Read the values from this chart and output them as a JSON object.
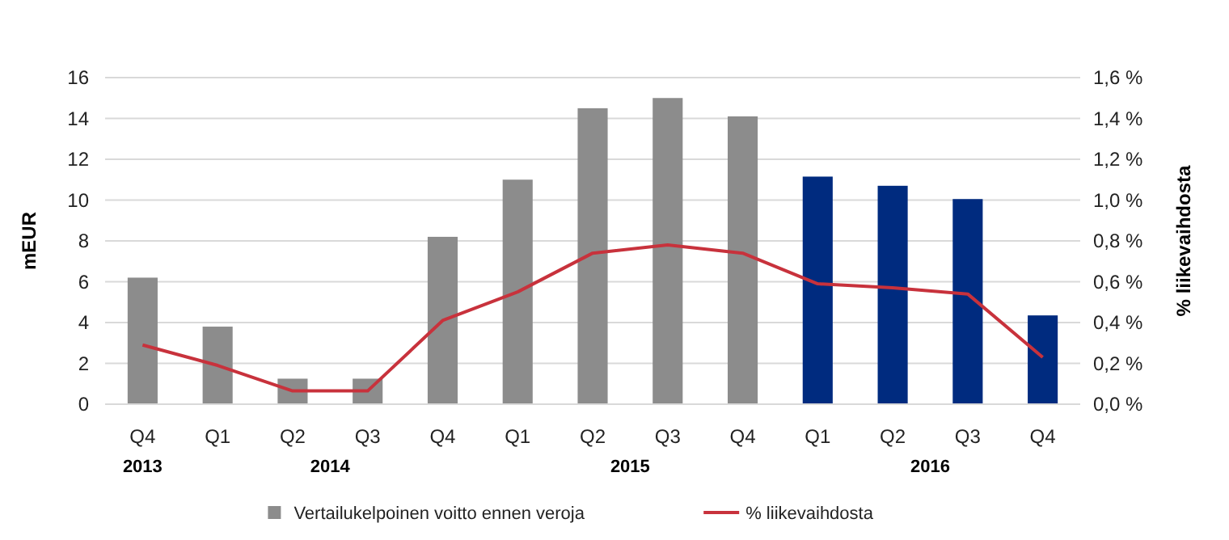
{
  "chart_data": {
    "type": "bar",
    "ylabel": "mEUR",
    "y2label": "% liikevaihdosta",
    "categories": [
      "Q4",
      "Q1",
      "Q2",
      "Q3",
      "Q4",
      "Q1",
      "Q2",
      "Q3",
      "Q4",
      "Q1",
      "Q2",
      "Q3",
      "Q4"
    ],
    "series": [
      {
        "name": "Vertailukelpoinen voitto ennen veroja",
        "color": "#8c8c8c",
        "colors": [
          "#8c8c8c",
          "#8c8c8c",
          "#8c8c8c",
          "#8c8c8c",
          "#8c8c8c",
          "#8c8c8c",
          "#8c8c8c",
          "#8c8c8c",
          "#8c8c8c",
          "#002b7f",
          "#002b7f",
          "#002b7f",
          "#002b7f"
        ],
        "values": [
          6.2,
          3.8,
          1.25,
          1.25,
          8.2,
          11.0,
          14.5,
          15.0,
          14.1,
          11.15,
          10.7,
          10.05,
          4.35
        ]
      },
      {
        "name": "% liikevaihdosta",
        "type": "line",
        "axis": "y2",
        "color": "#c8323c",
        "values": [
          0.29,
          0.19,
          0.065,
          0.065,
          0.41,
          0.55,
          0.74,
          0.78,
          0.74,
          0.59,
          0.57,
          0.54,
          0.23
        ]
      }
    ],
    "ylim": [
      0,
      16
    ],
    "yticks": [
      0,
      2,
      4,
      6,
      8,
      10,
      12,
      14,
      16
    ],
    "y2lim": [
      0,
      1.6
    ],
    "y2ticks": [
      {
        "value": 0,
        "label": "0,0 %"
      },
      {
        "value": 0.2,
        "label": "0,2 %"
      },
      {
        "value": 0.4,
        "label": "0,4 %"
      },
      {
        "value": 0.6,
        "label": "0,6 %"
      },
      {
        "value": 0.8,
        "label": "0,8 %"
      },
      {
        "value": 1.0,
        "label": "1,0 %"
      },
      {
        "value": 1.2,
        "label": "1,2 %"
      },
      {
        "value": 1.4,
        "label": "1,4 %"
      },
      {
        "value": 1.6,
        "label": "1,6 %"
      }
    ],
    "annotations": [
      "2013",
      "2014",
      "2015",
      "2016"
    ],
    "grid": "y",
    "legend": "bottom",
    "marker": "none",
    "line_style": "solid"
  }
}
